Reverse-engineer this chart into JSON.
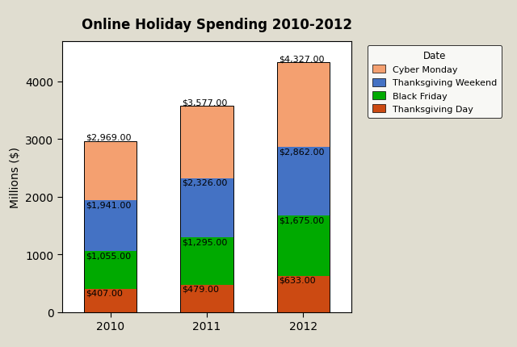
{
  "title": "Online Holiday Spending 2010-2012",
  "ylabel": "Millions ($)",
  "years": [
    "2010",
    "2011",
    "2012"
  ],
  "thanksgiving_day": [
    407,
    479,
    633
  ],
  "black_friday": [
    648,
    816,
    1042
  ],
  "thanksgiving_weekend": [
    886,
    1031,
    1187
  ],
  "cyber_monday": [
    1028,
    1251,
    1465
  ],
  "segment_labels": {
    "td": [
      "$407.00",
      "$479.00",
      "$633.00"
    ],
    "bf": [
      "$1,055.00",
      "$1,295.00",
      "$1,675.00"
    ],
    "tw": [
      "$1,941.00",
      "$2,326.00",
      "$2,862.00"
    ],
    "total": [
      "$2,969.00",
      "$3,577.00",
      "$4,327.00"
    ]
  },
  "colors": {
    "thanksgiving_day": "#CC4A12",
    "black_friday": "#00AA00",
    "thanksgiving_weekend": "#4472C4",
    "cyber_monday": "#F4A070"
  },
  "legend_title": "Date",
  "ylim": [
    0,
    4700
  ],
  "yticks": [
    0,
    1000,
    2000,
    3000,
    4000
  ],
  "background_outer": "#E0DDD0",
  "background_inner": "#FFFFFF",
  "bar_width": 0.55,
  "label_fontsize": 8,
  "axis_fontsize": 10,
  "title_fontsize": 12
}
